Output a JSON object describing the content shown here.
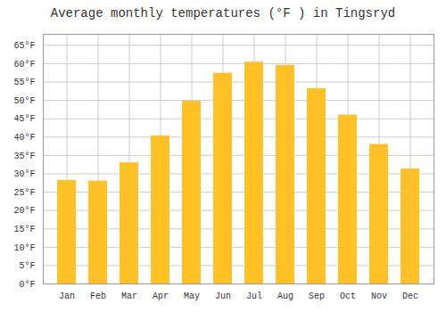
{
  "chart_data": {
    "type": "bar",
    "title": "Average monthly temperatures (°F ) in Tingsryd",
    "categories": [
      "Jan",
      "Feb",
      "Mar",
      "Apr",
      "May",
      "Jun",
      "Jul",
      "Aug",
      "Sep",
      "Oct",
      "Nov",
      "Dec"
    ],
    "values": [
      28.2,
      28.0,
      33.0,
      40.3,
      49.8,
      57.4,
      60.4,
      59.5,
      53.2,
      46.0,
      38.0,
      31.3
    ],
    "color": "#FFC125",
    "ylim": [
      0,
      68
    ],
    "yticks": [
      {
        "value": 0,
        "label": "0°F"
      },
      {
        "value": 5,
        "label": "5°F"
      },
      {
        "value": 10,
        "label": "10°F"
      },
      {
        "value": 15,
        "label": "15°F"
      },
      {
        "value": 20,
        "label": "20°F"
      },
      {
        "value": 25,
        "label": "25°F"
      },
      {
        "value": 30,
        "label": "30°F"
      },
      {
        "value": 35,
        "label": "35°F"
      },
      {
        "value": 40,
        "label": "40°F"
      },
      {
        "value": 45,
        "label": "45°F"
      },
      {
        "value": 50,
        "label": "50°F"
      },
      {
        "value": 55,
        "label": "55°F"
      },
      {
        "value": 60,
        "label": "60°F"
      },
      {
        "value": 65,
        "label": "65°F"
      }
    ],
    "grid": true
  }
}
